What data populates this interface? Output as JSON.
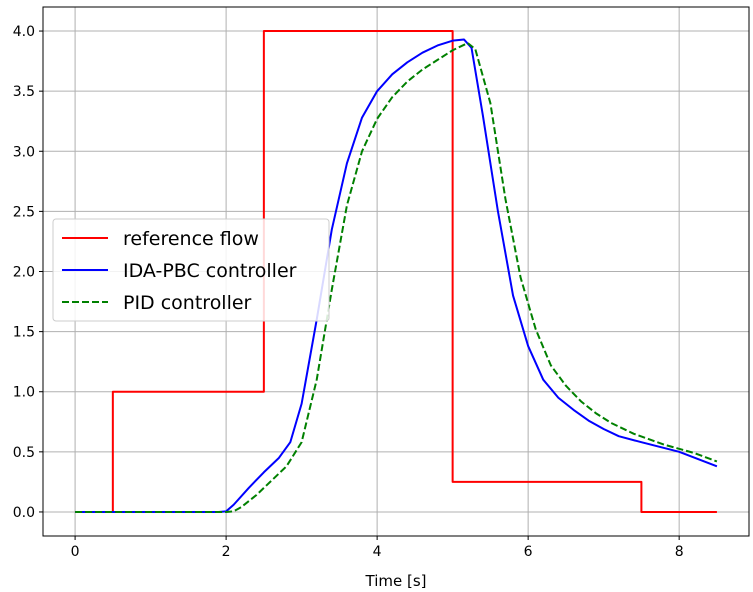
{
  "chart_data": {
    "type": "line",
    "xlabel": "Time [s]",
    "ylabel": "",
    "xlim": [
      -0.425,
      8.925
    ],
    "ylim": [
      -0.2,
      4.2
    ],
    "xticks": [
      0,
      2,
      4,
      6,
      8
    ],
    "yticks": [
      0.0,
      0.5,
      1.0,
      1.5,
      2.0,
      2.5,
      3.0,
      3.5,
      4.0
    ],
    "xtick_labels": [
      "0",
      "2",
      "4",
      "6",
      "8"
    ],
    "ytick_labels": [
      "0.0",
      "0.5",
      "1.0",
      "1.5",
      "2.0",
      "2.5",
      "3.0",
      "3.5",
      "4.0"
    ],
    "grid": true,
    "legend_position": "center-left",
    "series": [
      {
        "name": "reference flow",
        "color": "#ff0000",
        "style": "solid",
        "points": [
          [
            0,
            0
          ],
          [
            0.5,
            0
          ],
          [
            0.5,
            1.0
          ],
          [
            2.5,
            1.0
          ],
          [
            2.5,
            4.0
          ],
          [
            5.0,
            4.0
          ],
          [
            5.0,
            0.25
          ],
          [
            7.5,
            0.25
          ],
          [
            7.5,
            0
          ],
          [
            8.5,
            0
          ]
        ]
      },
      {
        "name": "IDA-PBC controller",
        "color": "#0000ff",
        "style": "solid",
        "points": [
          [
            0,
            0
          ],
          [
            1.9,
            0
          ],
          [
            2.0,
            0.005
          ],
          [
            2.1,
            0.06
          ],
          [
            2.3,
            0.2
          ],
          [
            2.5,
            0.33
          ],
          [
            2.7,
            0.45
          ],
          [
            2.85,
            0.58
          ],
          [
            3.0,
            0.9
          ],
          [
            3.2,
            1.6
          ],
          [
            3.4,
            2.35
          ],
          [
            3.6,
            2.9
          ],
          [
            3.8,
            3.28
          ],
          [
            4.0,
            3.5
          ],
          [
            4.2,
            3.64
          ],
          [
            4.4,
            3.74
          ],
          [
            4.6,
            3.82
          ],
          [
            4.8,
            3.88
          ],
          [
            5.0,
            3.92
          ],
          [
            5.15,
            3.93
          ],
          [
            5.25,
            3.86
          ],
          [
            5.4,
            3.3
          ],
          [
            5.6,
            2.5
          ],
          [
            5.8,
            1.8
          ],
          [
            6.0,
            1.38
          ],
          [
            6.2,
            1.1
          ],
          [
            6.4,
            0.95
          ],
          [
            6.6,
            0.85
          ],
          [
            6.8,
            0.76
          ],
          [
            7.0,
            0.69
          ],
          [
            7.2,
            0.63
          ],
          [
            7.5,
            0.58
          ],
          [
            8.0,
            0.5
          ],
          [
            8.5,
            0.38
          ]
        ]
      },
      {
        "name": "PID controller",
        "color": "#008000",
        "style": "dashed",
        "points": [
          [
            0,
            0
          ],
          [
            2.0,
            0
          ],
          [
            2.1,
            0.005
          ],
          [
            2.2,
            0.04
          ],
          [
            2.4,
            0.14
          ],
          [
            2.6,
            0.26
          ],
          [
            2.8,
            0.38
          ],
          [
            3.0,
            0.58
          ],
          [
            3.2,
            1.1
          ],
          [
            3.4,
            1.85
          ],
          [
            3.6,
            2.55
          ],
          [
            3.8,
            3.0
          ],
          [
            4.0,
            3.27
          ],
          [
            4.2,
            3.45
          ],
          [
            4.4,
            3.58
          ],
          [
            4.6,
            3.68
          ],
          [
            4.8,
            3.76
          ],
          [
            5.0,
            3.84
          ],
          [
            5.2,
            3.9
          ],
          [
            5.3,
            3.85
          ],
          [
            5.5,
            3.4
          ],
          [
            5.7,
            2.6
          ],
          [
            5.9,
            1.95
          ],
          [
            6.1,
            1.52
          ],
          [
            6.3,
            1.22
          ],
          [
            6.5,
            1.05
          ],
          [
            6.7,
            0.92
          ],
          [
            6.9,
            0.82
          ],
          [
            7.1,
            0.74
          ],
          [
            7.4,
            0.65
          ],
          [
            7.8,
            0.56
          ],
          [
            8.2,
            0.49
          ],
          [
            8.5,
            0.42
          ]
        ]
      }
    ]
  }
}
